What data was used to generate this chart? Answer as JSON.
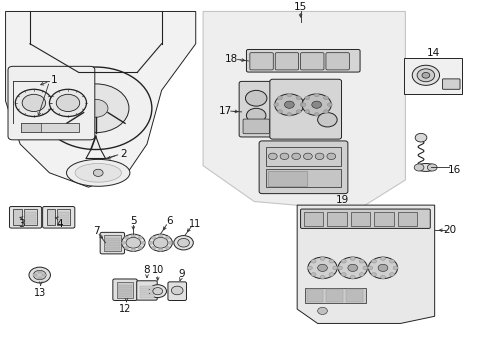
{
  "bg_color": "#ffffff",
  "fig_width": 4.89,
  "fig_height": 3.6,
  "dpi": 100,
  "line_color": "#222222",
  "callout_color": "#333333"
}
